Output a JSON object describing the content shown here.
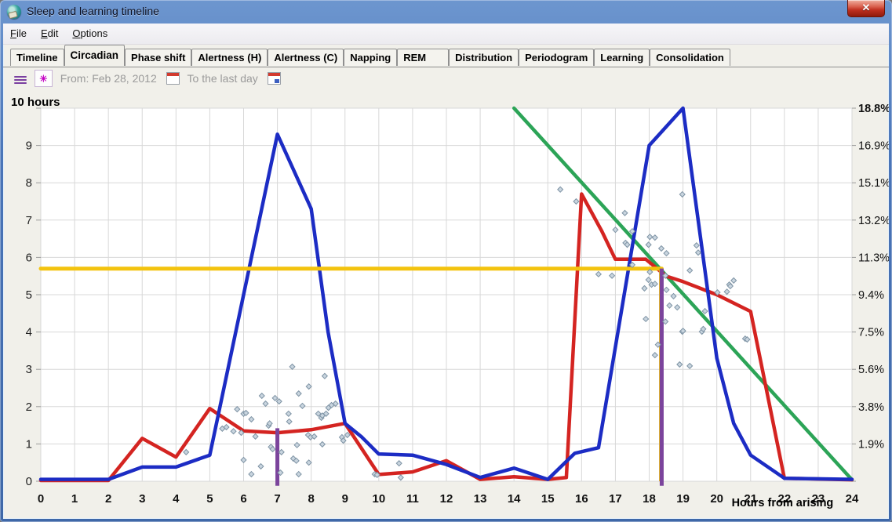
{
  "window": {
    "title": "Sleep and learning timeline"
  },
  "menu": {
    "items": [
      {
        "label": "File"
      },
      {
        "label": "Edit"
      },
      {
        "label": "Options"
      }
    ]
  },
  "tabs": {
    "selected": "Circadian",
    "items": [
      "Timeline",
      "Circadian",
      "Phase shift",
      "Alertness (H)",
      "Alertness (C)",
      "Napping",
      "REM",
      "Distribution",
      "Periodogram",
      "Learning",
      "Consolidation"
    ]
  },
  "toolbar": {
    "from_label": "From: Feb 28, 2012",
    "to_label": "To the last day",
    "burst_glyph": "✳"
  },
  "controls": {
    "close_glyph": "✕"
  },
  "chart_data": {
    "type": "line",
    "xlabel": "Hours from arising",
    "y_left_header": "10 hours",
    "xlim": [
      0,
      24
    ],
    "ylim": [
      0,
      10
    ],
    "grid": true,
    "x_ticks": [
      0,
      1,
      2,
      3,
      4,
      5,
      6,
      7,
      8,
      9,
      10,
      11,
      12,
      13,
      14,
      15,
      16,
      17,
      18,
      19,
      20,
      21,
      22,
      23,
      24
    ],
    "y_left_ticks": [
      0,
      1,
      2,
      3,
      4,
      5,
      6,
      7,
      8,
      9
    ],
    "y_right_labels": [
      "18.8%",
      "16.9%",
      "15.1%",
      "13.2%",
      "11.3%",
      "9.4%",
      "7.5%",
      "5.6%",
      "3.8%",
      "1.9%"
    ],
    "colors": {
      "blue_series": "#1c2cc4",
      "red_series": "#d42421",
      "green_series": "#2ca457",
      "yellow_line": "#f3c30e",
      "purple_marker": "#7b449c",
      "scatter_fill": "#c9d5df",
      "scatter_stroke": "#7e93a4",
      "grid": "#d8d8d8",
      "plot_bg": "#ffffff",
      "panel_bg": "#f1f0ea"
    },
    "series": [
      {
        "name": "green-reference-line",
        "color": "#2ca457",
        "width": 4.5,
        "points": [
          [
            14,
            10
          ],
          [
            24,
            0.04
          ]
        ]
      },
      {
        "name": "red-curve",
        "color": "#d42421",
        "width": 4.5,
        "points": [
          [
            0,
            0.02
          ],
          [
            2,
            0.02
          ],
          [
            3,
            1.15
          ],
          [
            4,
            0.65
          ],
          [
            5,
            1.95
          ],
          [
            6,
            1.35
          ],
          [
            7,
            1.3
          ],
          [
            8,
            1.38
          ],
          [
            9,
            1.55
          ],
          [
            10,
            0.18
          ],
          [
            11,
            0.25
          ],
          [
            12,
            0.55
          ],
          [
            13,
            0.05
          ],
          [
            14,
            0.12
          ],
          [
            15,
            0.05
          ],
          [
            15.55,
            0.1
          ],
          [
            16,
            7.7
          ],
          [
            16.6,
            6.7
          ],
          [
            17,
            5.95
          ],
          [
            17.9,
            5.95
          ],
          [
            18.5,
            5.5
          ],
          [
            19,
            5.35
          ],
          [
            20,
            5.0
          ],
          [
            21,
            4.55
          ],
          [
            22,
            0.08
          ],
          [
            24,
            0.04
          ]
        ]
      },
      {
        "name": "blue-curve",
        "color": "#1c2cc4",
        "width": 4.5,
        "points": [
          [
            0,
            0.05
          ],
          [
            2,
            0.05
          ],
          [
            3,
            0.38
          ],
          [
            4,
            0.38
          ],
          [
            5,
            0.7
          ],
          [
            7,
            9.3
          ],
          [
            8,
            7.3
          ],
          [
            8.5,
            4.0
          ],
          [
            9,
            1.55
          ],
          [
            9.5,
            1.18
          ],
          [
            10,
            0.73
          ],
          [
            11,
            0.7
          ],
          [
            12,
            0.45
          ],
          [
            13,
            0.1
          ],
          [
            14,
            0.35
          ],
          [
            15,
            0.05
          ],
          [
            15.8,
            0.75
          ],
          [
            16.5,
            0.9
          ],
          [
            18,
            9.0
          ],
          [
            19,
            10.0
          ],
          [
            20,
            3.3
          ],
          [
            20.5,
            1.55
          ],
          [
            21,
            0.7
          ],
          [
            22,
            0.08
          ],
          [
            24,
            0.05
          ]
        ]
      },
      {
        "name": "yellow-threshold-line",
        "color": "#f3c30e",
        "width": 5,
        "points": [
          [
            0,
            5.7
          ],
          [
            18.37,
            5.7
          ]
        ]
      }
    ],
    "markers": [
      {
        "name": "thin-yellow-vertical",
        "x": 18.31,
        "y0": 0,
        "y1": 5.7,
        "color": "#e5b60d",
        "width": 1.5
      },
      {
        "name": "purple-vertical-1",
        "x": 7.0,
        "y0": -0.12,
        "y1": 1.42,
        "color": "#7b449c",
        "width": 5
      },
      {
        "name": "purple-vertical-2",
        "x": 18.37,
        "y0": -0.12,
        "y1": 5.7,
        "color": "#7b449c",
        "width": 5
      }
    ],
    "scatter": {
      "name": "sleep-episode-points",
      "points": [
        [
          4.3,
          0.78
        ],
        [
          5.37,
          1.41
        ],
        [
          5.49,
          1.45
        ],
        [
          5.7,
          1.34
        ],
        [
          5.81,
          1.93
        ],
        [
          5.93,
          1.3
        ],
        [
          6.0,
          1.81
        ],
        [
          6.0,
          0.57
        ],
        [
          6.07,
          1.83
        ],
        [
          6.23,
          1.66
        ],
        [
          6.23,
          0.19
        ],
        [
          6.35,
          1.2
        ],
        [
          6.51,
          0.4
        ],
        [
          6.54,
          2.29
        ],
        [
          6.65,
          2.08
        ],
        [
          6.74,
          1.49
        ],
        [
          6.77,
          1.55
        ],
        [
          6.81,
          0.92
        ],
        [
          6.86,
          0.86
        ],
        [
          6.93,
          2.23
        ],
        [
          7.05,
          2.14
        ],
        [
          7.09,
          0.23
        ],
        [
          7.12,
          0.78
        ],
        [
          7.33,
          1.81
        ],
        [
          7.35,
          1.6
        ],
        [
          7.44,
          3.07
        ],
        [
          7.47,
          0.61
        ],
        [
          7.56,
          0.55
        ],
        [
          7.58,
          0.97
        ],
        [
          7.63,
          2.35
        ],
        [
          7.63,
          0.19
        ],
        [
          7.74,
          2.02
        ],
        [
          7.91,
          1.24
        ],
        [
          7.93,
          2.54
        ],
        [
          7.93,
          0.5
        ],
        [
          7.98,
          1.18
        ],
        [
          8.09,
          1.2
        ],
        [
          8.21,
          1.81
        ],
        [
          8.3,
          1.7
        ],
        [
          8.33,
          1.76
        ],
        [
          8.33,
          0.99
        ],
        [
          8.4,
          2.82
        ],
        [
          8.44,
          1.81
        ],
        [
          8.51,
          1.97
        ],
        [
          8.6,
          2.04
        ],
        [
          8.72,
          2.08
        ],
        [
          8.91,
          1.18
        ],
        [
          8.95,
          1.09
        ],
        [
          9.07,
          1.24
        ],
        [
          9.88,
          0.19
        ],
        [
          9.95,
          0.17
        ],
        [
          10.6,
          0.48
        ],
        [
          10.65,
          0.1
        ],
        [
          15.37,
          7.82
        ],
        [
          15.84,
          7.5
        ],
        [
          16.5,
          5.55
        ],
        [
          16.9,
          5.51
        ],
        [
          17.0,
          6.74
        ],
        [
          17.28,
          7.19
        ],
        [
          17.3,
          6.39
        ],
        [
          17.35,
          6.34
        ],
        [
          17.5,
          6.7
        ],
        [
          17.5,
          5.8
        ],
        [
          17.86,
          5.17
        ],
        [
          17.9,
          4.35
        ],
        [
          17.98,
          6.34
        ],
        [
          17.98,
          5.4
        ],
        [
          18.02,
          6.55
        ],
        [
          18.02,
          5.61
        ],
        [
          18.07,
          5.27
        ],
        [
          18.17,
          6.53
        ],
        [
          18.17,
          5.29
        ],
        [
          18.17,
          3.38
        ],
        [
          18.26,
          3.66
        ],
        [
          18.36,
          6.24
        ],
        [
          18.48,
          5.51
        ],
        [
          18.48,
          4.28
        ],
        [
          18.51,
          6.11
        ],
        [
          18.51,
          5.13
        ],
        [
          18.6,
          4.71
        ],
        [
          18.72,
          4.96
        ],
        [
          18.83,
          4.66
        ],
        [
          18.9,
          3.13
        ],
        [
          18.98,
          7.69
        ],
        [
          18.98,
          4.01
        ],
        [
          19.0,
          4.03
        ],
        [
          19.2,
          5.65
        ],
        [
          19.2,
          3.09
        ],
        [
          19.4,
          6.32
        ],
        [
          19.45,
          6.13
        ],
        [
          19.56,
          4.01
        ],
        [
          19.6,
          4.08
        ],
        [
          19.65,
          4.56
        ],
        [
          20.02,
          5.06
        ],
        [
          20.3,
          5.08
        ],
        [
          20.37,
          5.27
        ],
        [
          20.4,
          5.23
        ],
        [
          20.5,
          5.38
        ],
        [
          20.84,
          3.82
        ],
        [
          20.9,
          3.8
        ]
      ]
    }
  }
}
